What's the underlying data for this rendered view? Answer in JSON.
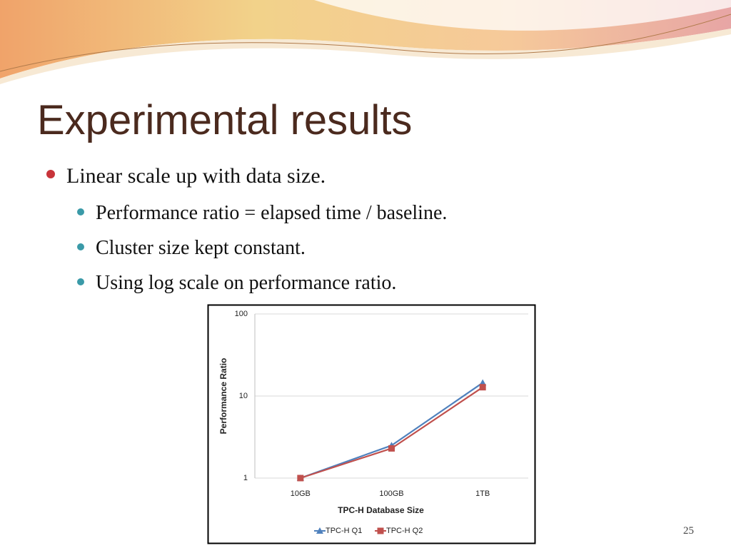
{
  "title": "Experimental results",
  "bullet": "Linear scale up with data size.",
  "sub_bullets": [
    "Performance ratio = elapsed time / baseline.",
    "Cluster size kept constant.",
    "Using log scale on performance ratio."
  ],
  "page_number": "25",
  "chart_data": {
    "type": "line",
    "x_label": "TPC-H Database Size",
    "y_label": "Performance Ratio",
    "categories": [
      "10GB",
      "100GB",
      "1TB"
    ],
    "series": [
      {
        "name": "TPC-H Q1",
        "color": "#4f81bd",
        "marker": "triangle",
        "values": [
          1,
          2.5,
          14.5
        ]
      },
      {
        "name": "TPC-H Q2",
        "color": "#c0504d",
        "marker": "square",
        "values": [
          1,
          2.3,
          12.8
        ]
      }
    ],
    "ylim": [
      1,
      100
    ],
    "yticks": [
      1,
      10,
      100
    ],
    "log_y": true,
    "grid": true,
    "legend": "bottom"
  }
}
